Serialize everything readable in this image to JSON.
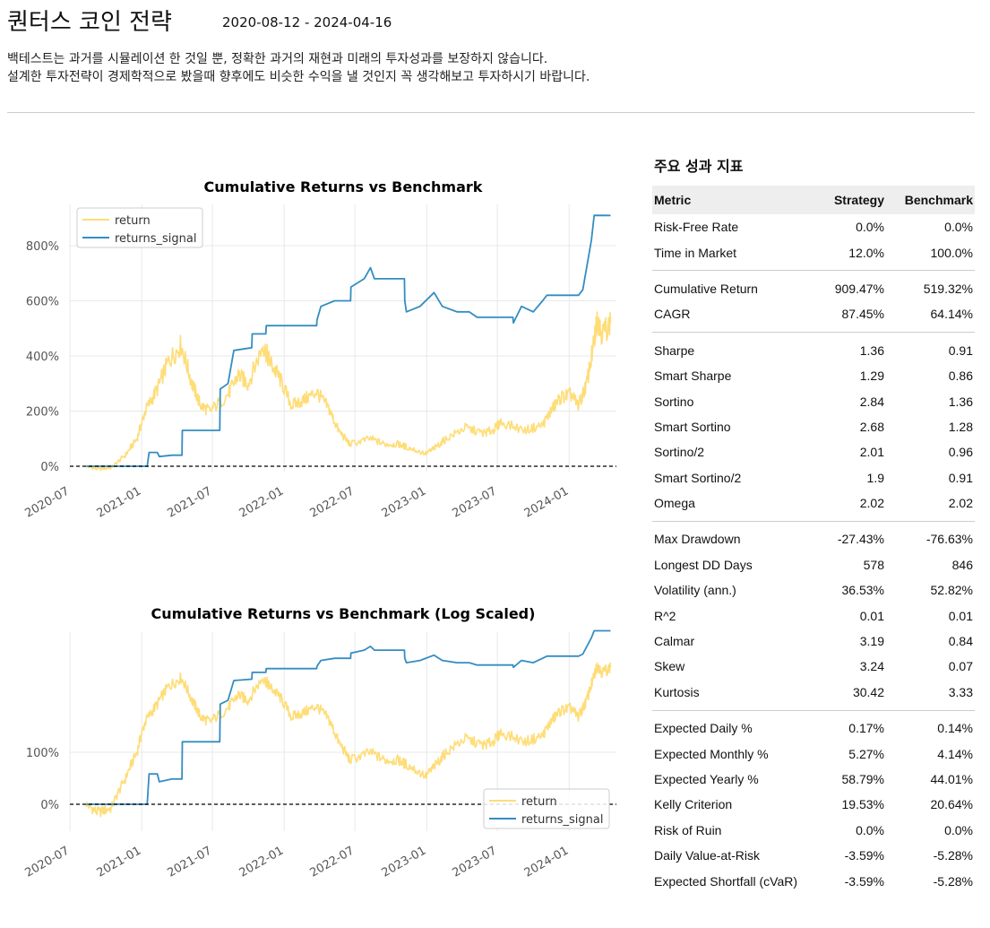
{
  "header": {
    "title": "퀀터스 코인 전략",
    "date_range": "2020-08-12 - 2024-04-16",
    "disclaimer_line1": "백테스트는 과거를 시뮬레이션 한 것일 뿐, 정확한 과거의 재현과 미래의 투자성과를 보장하지 않습니다.",
    "disclaimer_line2": "설계한 투자전략이 경제학적으로 봤을때 향후에도 비슷한 수익을 낼 것인지 꼭 생각해보고 투자하시기 바랍니다."
  },
  "colors": {
    "return": "#fedd78",
    "returns_signal": "#348dc1",
    "benchmark_zero": "#000000"
  },
  "chart_data": [
    {
      "type": "line",
      "title": "Cumulative Returns vs Benchmark",
      "x_ticks": [
        "2020-07",
        "2021-01",
        "2021-07",
        "2022-01",
        "2022-07",
        "2023-01",
        "2023-07",
        "2024-01"
      ],
      "y_ticks": [
        "0%",
        "200%",
        "400%",
        "600%",
        "800%"
      ],
      "ylim": [
        -20,
        930
      ],
      "xlim": [
        "2020-07-01",
        "2024-05-01"
      ],
      "legend": "top-left",
      "grid": true,
      "series": [
        {
          "name": "return",
          "points": [
            [
              "2020-08-12",
              0
            ],
            [
              "2020-09-10",
              -10
            ],
            [
              "2020-10-15",
              -5
            ],
            [
              "2020-11-20",
              40
            ],
            [
              "2020-12-20",
              100
            ],
            [
              "2021-01-10",
              200
            ],
            [
              "2021-02-10",
              280
            ],
            [
              "2021-03-10",
              380
            ],
            [
              "2021-04-12",
              440
            ],
            [
              "2021-05-10",
              300
            ],
            [
              "2021-06-01",
              220
            ],
            [
              "2021-06-25",
              200
            ],
            [
              "2021-08-10",
              260
            ],
            [
              "2021-09-05",
              330
            ],
            [
              "2021-10-01",
              300
            ],
            [
              "2021-11-08",
              440
            ],
            [
              "2021-11-25",
              380
            ],
            [
              "2021-12-20",
              320
            ],
            [
              "2022-01-20",
              220
            ],
            [
              "2022-02-20",
              240
            ],
            [
              "2022-03-25",
              270
            ],
            [
              "2022-04-25",
              210
            ],
            [
              "2022-05-20",
              130
            ],
            [
              "2022-06-18",
              80
            ],
            [
              "2022-08-10",
              100
            ],
            [
              "2022-09-15",
              80
            ],
            [
              "2022-10-20",
              80
            ],
            [
              "2022-11-10",
              70
            ],
            [
              "2022-12-30",
              45
            ],
            [
              "2023-01-25",
              70
            ],
            [
              "2023-02-20",
              100
            ],
            [
              "2023-04-10",
              140
            ],
            [
              "2023-05-25",
              120
            ],
            [
              "2023-06-20",
              130
            ],
            [
              "2023-07-10",
              160
            ],
            [
              "2023-09-10",
              130
            ],
            [
              "2023-10-25",
              150
            ],
            [
              "2023-11-15",
              200
            ],
            [
              "2023-12-10",
              250
            ],
            [
              "2024-01-05",
              260
            ],
            [
              "2024-01-25",
              220
            ],
            [
              "2024-02-15",
              300
            ],
            [
              "2024-03-05",
              450
            ],
            [
              "2024-03-13",
              540
            ],
            [
              "2024-03-25",
              480
            ],
            [
              "2024-04-16",
              519.32
            ]
          ]
        },
        {
          "name": "returns_signal",
          "points": [
            [
              "2020-08-12",
              0
            ],
            [
              "2021-01-15",
              0
            ],
            [
              "2021-01-20",
              50
            ],
            [
              "2021-02-10",
              50
            ],
            [
              "2021-02-15",
              35
            ],
            [
              "2021-03-20",
              40
            ],
            [
              "2021-04-14",
              40
            ],
            [
              "2021-04-15",
              130
            ],
            [
              "2021-07-20",
              130
            ],
            [
              "2021-07-21",
              280
            ],
            [
              "2021-08-10",
              300
            ],
            [
              "2021-08-25",
              420
            ],
            [
              "2021-10-10",
              430
            ],
            [
              "2021-10-11",
              480
            ],
            [
              "2021-11-15",
              480
            ],
            [
              "2021-11-16",
              510
            ],
            [
              "2022-03-25",
              510
            ],
            [
              "2022-03-26",
              530
            ],
            [
              "2022-04-05",
              580
            ],
            [
              "2022-05-10",
              600
            ],
            [
              "2022-06-20",
              600
            ],
            [
              "2022-06-21",
              650
            ],
            [
              "2022-07-25",
              680
            ],
            [
              "2022-08-10",
              720
            ],
            [
              "2022-08-20",
              680
            ],
            [
              "2022-11-05",
              680
            ],
            [
              "2022-11-06",
              600
            ],
            [
              "2022-11-10",
              560
            ],
            [
              "2022-12-15",
              580
            ],
            [
              "2023-01-20",
              630
            ],
            [
              "2023-02-10",
              580
            ],
            [
              "2023-03-20",
              560
            ],
            [
              "2023-04-20",
              560
            ],
            [
              "2023-05-10",
              540
            ],
            [
              "2023-08-10",
              540
            ],
            [
              "2023-08-11",
              520
            ],
            [
              "2023-09-01",
              580
            ],
            [
              "2023-10-01",
              560
            ],
            [
              "2023-10-25",
              600
            ],
            [
              "2023-11-05",
              620
            ],
            [
              "2023-12-15",
              620
            ],
            [
              "2024-01-08",
              620
            ],
            [
              "2024-01-25",
              620
            ],
            [
              "2024-02-05",
              640
            ],
            [
              "2024-02-27",
              820
            ],
            [
              "2024-03-05",
              910
            ],
            [
              "2024-04-16",
              909.47
            ]
          ]
        }
      ]
    },
    {
      "type": "line",
      "title": "Cumulative Returns vs Benchmark (Log Scaled)",
      "x_ticks": [
        "2020-07",
        "2021-01",
        "2021-07",
        "2022-01",
        "2022-07",
        "2023-01",
        "2023-07",
        "2024-01"
      ],
      "y_ticks": [
        "0%",
        "100%"
      ],
      "y_scale": "log",
      "xlim": [
        "2020-07-01",
        "2024-05-01"
      ],
      "legend": "bottom-right",
      "grid": true,
      "series": [
        {
          "name": "return",
          "points": [
            [
              "2020-08-12",
              0
            ],
            [
              "2020-09-10",
              -10
            ],
            [
              "2020-10-15",
              -5
            ],
            [
              "2020-11-20",
              40
            ],
            [
              "2020-12-20",
              100
            ],
            [
              "2021-01-10",
              200
            ],
            [
              "2021-02-10",
              280
            ],
            [
              "2021-03-10",
              380
            ],
            [
              "2021-04-12",
              440
            ],
            [
              "2021-05-10",
              300
            ],
            [
              "2021-06-01",
              220
            ],
            [
              "2021-06-25",
              200
            ],
            [
              "2021-08-10",
              260
            ],
            [
              "2021-09-05",
              330
            ],
            [
              "2021-10-01",
              300
            ],
            [
              "2021-11-08",
              440
            ],
            [
              "2021-11-25",
              380
            ],
            [
              "2021-12-20",
              320
            ],
            [
              "2022-01-20",
              220
            ],
            [
              "2022-02-20",
              240
            ],
            [
              "2022-03-25",
              270
            ],
            [
              "2022-04-25",
              210
            ],
            [
              "2022-05-20",
              130
            ],
            [
              "2022-06-18",
              80
            ],
            [
              "2022-08-10",
              100
            ],
            [
              "2022-09-15",
              80
            ],
            [
              "2022-10-20",
              80
            ],
            [
              "2022-11-10",
              70
            ],
            [
              "2022-12-30",
              45
            ],
            [
              "2023-01-25",
              70
            ],
            [
              "2023-02-20",
              100
            ],
            [
              "2023-04-10",
              140
            ],
            [
              "2023-05-25",
              120
            ],
            [
              "2023-06-20",
              130
            ],
            [
              "2023-07-10",
              160
            ],
            [
              "2023-09-10",
              130
            ],
            [
              "2023-10-25",
              150
            ],
            [
              "2023-11-15",
              200
            ],
            [
              "2023-12-10",
              250
            ],
            [
              "2024-01-05",
              260
            ],
            [
              "2024-01-25",
              220
            ],
            [
              "2024-02-15",
              300
            ],
            [
              "2024-03-05",
              450
            ],
            [
              "2024-03-13",
              540
            ],
            [
              "2024-03-25",
              480
            ],
            [
              "2024-04-16",
              519.32
            ]
          ]
        },
        {
          "name": "returns_signal",
          "points": [
            [
              "2020-08-12",
              0
            ],
            [
              "2021-01-15",
              0
            ],
            [
              "2021-01-20",
              50
            ],
            [
              "2021-02-10",
              50
            ],
            [
              "2021-02-15",
              35
            ],
            [
              "2021-03-20",
              40
            ],
            [
              "2021-04-14",
              40
            ],
            [
              "2021-04-15",
              130
            ],
            [
              "2021-07-20",
              130
            ],
            [
              "2021-07-21",
              280
            ],
            [
              "2021-08-10",
              300
            ],
            [
              "2021-08-25",
              420
            ],
            [
              "2021-10-10",
              430
            ],
            [
              "2021-10-11",
              480
            ],
            [
              "2021-11-15",
              480
            ],
            [
              "2021-11-16",
              510
            ],
            [
              "2022-03-25",
              510
            ],
            [
              "2022-03-26",
              530
            ],
            [
              "2022-04-05",
              580
            ],
            [
              "2022-05-10",
              600
            ],
            [
              "2022-06-20",
              600
            ],
            [
              "2022-06-21",
              650
            ],
            [
              "2022-07-25",
              680
            ],
            [
              "2022-08-10",
              720
            ],
            [
              "2022-08-20",
              680
            ],
            [
              "2022-11-05",
              680
            ],
            [
              "2022-11-06",
              600
            ],
            [
              "2022-11-10",
              560
            ],
            [
              "2022-12-15",
              580
            ],
            [
              "2023-01-20",
              630
            ],
            [
              "2023-02-10",
              580
            ],
            [
              "2023-03-20",
              560
            ],
            [
              "2023-04-20",
              560
            ],
            [
              "2023-05-10",
              540
            ],
            [
              "2023-08-10",
              540
            ],
            [
              "2023-08-11",
              520
            ],
            [
              "2023-09-01",
              580
            ],
            [
              "2023-10-01",
              560
            ],
            [
              "2023-10-25",
              600
            ],
            [
              "2023-11-05",
              620
            ],
            [
              "2023-12-15",
              620
            ],
            [
              "2024-01-08",
              620
            ],
            [
              "2024-01-25",
              620
            ],
            [
              "2024-02-05",
              640
            ],
            [
              "2024-02-27",
              820
            ],
            [
              "2024-03-05",
              910
            ],
            [
              "2024-04-16",
              909.47
            ]
          ]
        }
      ]
    },
    {
      "type": "table",
      "title": "주요 성과 지표",
      "columns": [
        "Metric",
        "Strategy",
        "Benchmark"
      ],
      "groups": [
        [
          [
            "Risk-Free Rate",
            "0.0%",
            "0.0%"
          ],
          [
            "Time in Market",
            "12.0%",
            "100.0%"
          ]
        ],
        [
          [
            "Cumulative Return",
            "909.47%",
            "519.32%"
          ],
          [
            "CAGR",
            "87.45%",
            "64.14%"
          ]
        ],
        [
          [
            "Sharpe",
            "1.36",
            "0.91"
          ],
          [
            "Smart Sharpe",
            "1.29",
            "0.86"
          ],
          [
            "Sortino",
            "2.84",
            "1.36"
          ],
          [
            "Smart Sortino",
            "2.68",
            "1.28"
          ],
          [
            "Sortino/2",
            "2.01",
            "0.96"
          ],
          [
            "Smart Sortino/2",
            "1.9",
            "0.91"
          ],
          [
            "Omega",
            "2.02",
            "2.02"
          ]
        ],
        [
          [
            "Max Drawdown",
            "-27.43%",
            "-76.63%"
          ],
          [
            "Longest DD Days",
            "578",
            "846"
          ],
          [
            "Volatility (ann.)",
            "36.53%",
            "52.82%"
          ],
          [
            "R^2",
            "0.01",
            "0.01"
          ],
          [
            "Calmar",
            "3.19",
            "0.84"
          ],
          [
            "Skew",
            "3.24",
            "0.07"
          ],
          [
            "Kurtosis",
            "30.42",
            "3.33"
          ]
        ],
        [
          [
            "Expected Daily %",
            "0.17%",
            "0.14%"
          ],
          [
            "Expected Monthly %",
            "5.27%",
            "4.14%"
          ],
          [
            "Expected Yearly %",
            "58.79%",
            "44.01%"
          ],
          [
            "Kelly Criterion",
            "19.53%",
            "20.64%"
          ],
          [
            "Risk of Ruin",
            "0.0%",
            "0.0%"
          ],
          [
            "Daily Value-at-Risk",
            "-3.59%",
            "-5.28%"
          ],
          [
            "Expected Shortfall (cVaR)",
            "-3.59%",
            "-5.28%"
          ]
        ]
      ]
    }
  ]
}
